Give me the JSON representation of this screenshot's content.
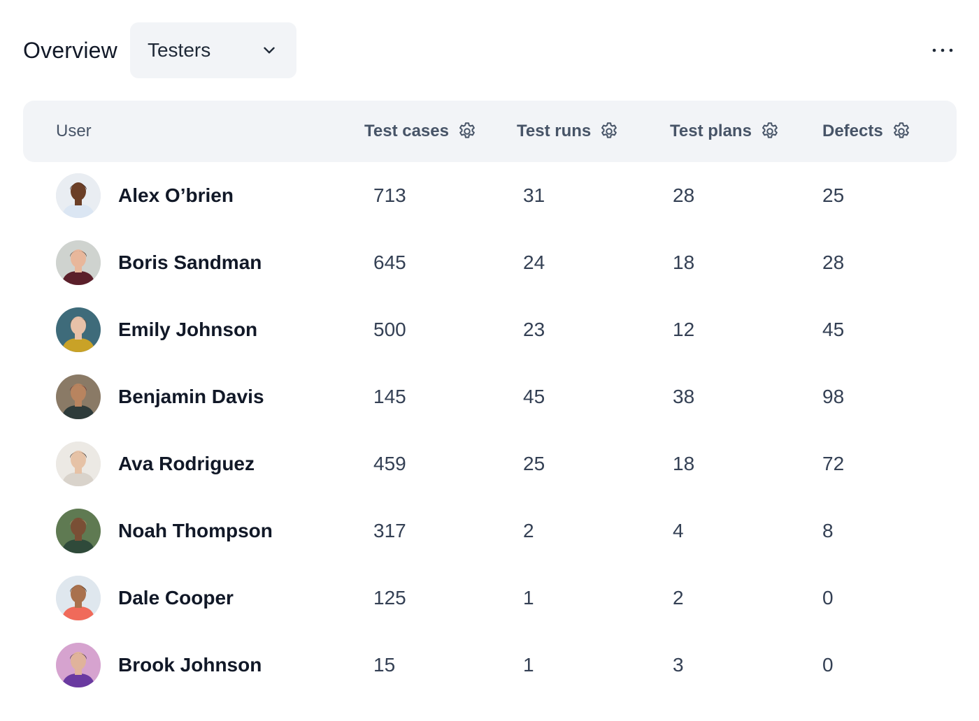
{
  "header": {
    "title": "Overview",
    "select_value": "Testers"
  },
  "table": {
    "columns": [
      "User",
      "Test cases",
      "Test runs",
      "Test plans",
      "Defects"
    ],
    "rows": [
      {
        "name": "Alex O’brien",
        "test_cases": "713",
        "test_runs": "31",
        "test_plans": "28",
        "defects": "25",
        "avatar": {
          "bg": "#e9edf2",
          "skin": "#6b3f27",
          "hair": "#1a1110",
          "shirt": "#dbe6f3"
        }
      },
      {
        "name": "Boris Sandman",
        "test_cases": "645",
        "test_runs": "24",
        "test_plans": "18",
        "defects": "28",
        "avatar": {
          "bg": "#cfd3cf",
          "skin": "#e8b79b",
          "hair": "#3a2a22",
          "shirt": "#5b1f2a"
        }
      },
      {
        "name": "Emily Johnson",
        "test_cases": "500",
        "test_runs": "23",
        "test_plans": "12",
        "defects": "45",
        "avatar": {
          "bg": "#3e6b7a",
          "skin": "#e8c1a8",
          "hair": "#6a4a35",
          "shirt": "#c9a227"
        }
      },
      {
        "name": "Benjamin Davis",
        "test_cases": "145",
        "test_runs": "45",
        "test_plans": "38",
        "defects": "98",
        "avatar": {
          "bg": "#8a7a66",
          "skin": "#b8845f",
          "hair": "#6b2e2e",
          "shirt": "#2e3b3a"
        }
      },
      {
        "name": "Ava Rodriguez",
        "test_cases": "459",
        "test_runs": "25",
        "test_plans": "18",
        "defects": "72",
        "avatar": {
          "bg": "#ece9e4",
          "skin": "#e6c2a6",
          "hair": "#1c1614",
          "shirt": "#d9d3cb"
        }
      },
      {
        "name": "Noah Thompson",
        "test_cases": "317",
        "test_runs": "2",
        "test_plans": "4",
        "defects": "8",
        "avatar": {
          "bg": "#5f7a52",
          "skin": "#7a4f35",
          "hair": "#b89a70",
          "shirt": "#2f4a3a"
        }
      },
      {
        "name": "Dale Cooper",
        "test_cases": "125",
        "test_runs": "1",
        "test_plans": "2",
        "defects": "0",
        "avatar": {
          "bg": "#dfe7ee",
          "skin": "#a9714d",
          "hair": "#1e1612",
          "shirt": "#f06a5a"
        }
      },
      {
        "name": "Brook Johnson",
        "test_cases": "15",
        "test_runs": "1",
        "test_plans": "3",
        "defects": "0",
        "avatar": {
          "bg": "#d6a3cf",
          "skin": "#e0b39b",
          "hair": "#2a1c2a",
          "shirt": "#6a3aa0"
        }
      }
    ]
  }
}
